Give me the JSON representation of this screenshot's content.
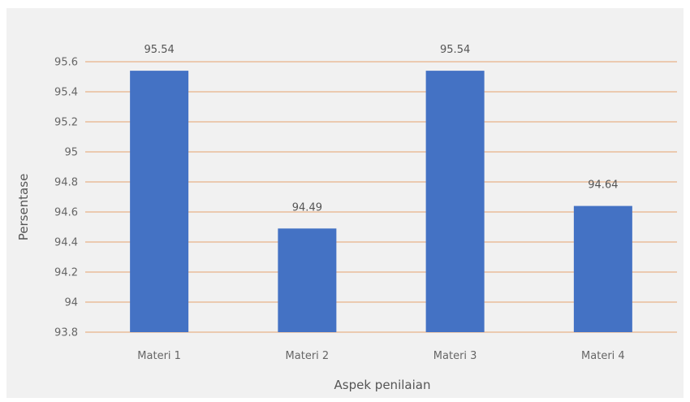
{
  "chart_data": {
    "type": "bar",
    "categories": [
      "Materi 1",
      "Materi 2",
      "Materi 3",
      "Materi 4"
    ],
    "values": [
      95.54,
      94.49,
      95.54,
      94.64
    ],
    "data_labels": [
      "95.54",
      "94.49",
      "95.54",
      "94.64"
    ],
    "xlabel": "Aspek penilaian",
    "ylabel": "Persentase",
    "ylim": [
      93.8,
      95.6
    ],
    "yticks": [
      93.8,
      94,
      94.2,
      94.4,
      94.6,
      94.8,
      95,
      95.2,
      95.4,
      95.6
    ],
    "ytick_labels": [
      "93.8",
      "94",
      "94.2",
      "94.4",
      "94.6",
      "94.8",
      "95",
      "95.2",
      "95.4",
      "95.6"
    ],
    "grid": true,
    "legend": "none",
    "colors": {
      "bar": "#4472c4",
      "grid": "#e8b28a",
      "background": "#f1f1f1",
      "text": "#666666"
    }
  }
}
